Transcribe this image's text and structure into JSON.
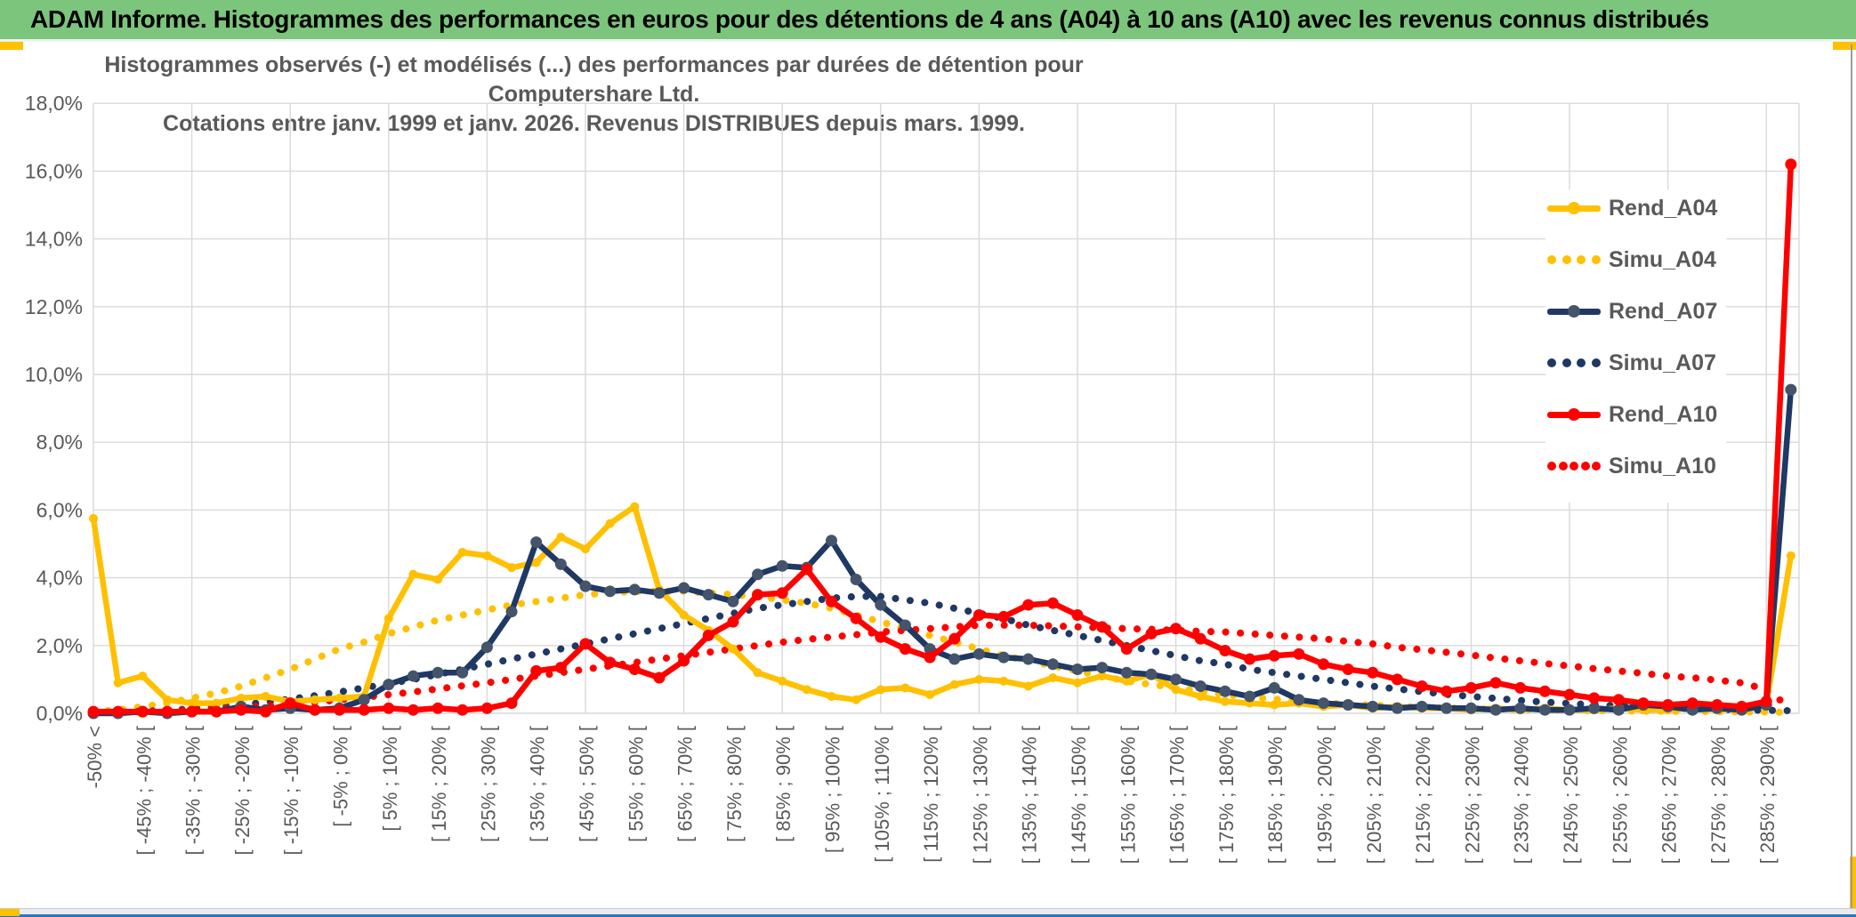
{
  "header": {
    "title": "ADAM Informe. Histogrammes des performances en euros pour des détentions de 4 ans (A04) à 10 ans (A10) avec les revenus connus distribués"
  },
  "chart": {
    "title_line1": "Histogrammes observés (-) et modélisés (...) des performances par durées de détention pour Computershare Ltd.",
    "title_line2": "Cotations entre janv. 1999 et janv. 2026. Revenus DISTRIBUES depuis mars. 1999."
  },
  "legend": {
    "items": [
      {
        "label": "Rend_A04",
        "color": "#FFC000",
        "marker_color": "#FFC000",
        "style": "solid",
        "sample_dots": 0
      },
      {
        "label": "Simu_A04",
        "color": "#FFC000",
        "marker_color": "#FFC000",
        "style": "dotted",
        "sample_dots": 4
      },
      {
        "label": "Rend_A07",
        "color": "#1F3864",
        "marker_color": "#44546A",
        "style": "solid",
        "sample_dots": 0
      },
      {
        "label": "Simu_A07",
        "color": "#1F3864",
        "marker_color": "#1F3864",
        "style": "dotted",
        "sample_dots": 4
      },
      {
        "label": "Rend_A10",
        "color": "#FF0000",
        "marker_color": "#FF0000",
        "style": "solid",
        "sample_dots": 0
      },
      {
        "label": "Simu_A10",
        "color": "#FF0000",
        "marker_color": "#FF0000",
        "style": "dotted",
        "sample_dots": 5
      }
    ]
  },
  "colors": {
    "header_green": "#7cc57c",
    "gold": "#FFC000",
    "navy": "#1F3864",
    "navy_marker": "#44546A",
    "red": "#FF0000",
    "axis_text": "#595959",
    "gridline": "#D9D9D9",
    "bottom_blue": "#2e75b6"
  },
  "chart_data": {
    "type": "line",
    "title": "Histogrammes observés (-) et modélisés (...) des performances par durées de détention pour Computershare Ltd.",
    "subtitle": "Cotations entre janv. 1999 et janv. 2026. Revenus DISTRIBUES depuis mars. 1999.",
    "grid": true,
    "legend_position": "right-inside",
    "y_axis": {
      "min": 0,
      "max": 18,
      "step": 2,
      "unit": "%",
      "tick_labels": [
        "0,0%",
        "2,0%",
        "4,0%",
        "6,0%",
        "8,0%",
        "10,0%",
        "12,0%",
        "14,0%",
        "16,0%",
        "18,0%"
      ]
    },
    "x_axis": {
      "n_points": 70,
      "bucket_width_pct": 5,
      "label_every_points": 2,
      "first_label_point_index": 0,
      "overflow_bucket_at_end": true,
      "labels": [
        "-50% <",
        "[ -45% ; -40% [",
        "[ -35% ; -30% [",
        "[ -25% ; -20% [",
        "[ -15% ; -10% [",
        "[ -5% ; 0% [",
        "[ 5% ; 10% [",
        "[ 15% ; 20% [",
        "[ 25% ; 30% [",
        "[ 35% ; 40% [",
        "[ 45% ; 50% [",
        "[ 55% ; 60% [",
        "[ 65% ; 70% [",
        "[ 75% ; 80% [",
        "[ 85% ; 90% [",
        "[ 95% ; 100% [",
        "[ 105% ; 110% [",
        "[ 115% ; 120% [",
        "[ 125% ; 130% [",
        "[ 135% ; 140% [",
        "[ 145% ; 150% [",
        "[ 155% ; 160% [",
        "[ 165% ; 170% [",
        "[ 175% ; 180% [",
        "[ 185% ; 190% [",
        "[ 195% ; 200% [",
        "[ 205% ; 210% [",
        "[ 215% ; 220% [",
        "[ 225% ; 230% [",
        "[ 235% ; 240% [",
        "[ 245% ; 250% [",
        "[ 255% ; 260% [",
        "[ 265% ; 270% [",
        "[ 275% ; 280% [",
        "[ 285% ; 290% ["
      ]
    },
    "series": [
      {
        "name": "Rend_A04",
        "style": "solid",
        "color": "#FFC000",
        "marker_color": "#FFC000",
        "marker_r": 5,
        "values": [
          5.75,
          0.9,
          1.1,
          0.4,
          0.3,
          0.3,
          0.45,
          0.5,
          0.35,
          0.4,
          0.45,
          0.5,
          2.8,
          4.1,
          3.95,
          4.75,
          4.65,
          4.3,
          4.45,
          5.2,
          4.85,
          5.6,
          6.1,
          3.65,
          2.9,
          2.45,
          1.9,
          1.2,
          0.95,
          0.7,
          0.5,
          0.4,
          0.7,
          0.75,
          0.55,
          0.85,
          1.0,
          0.95,
          0.8,
          1.05,
          0.9,
          1.1,
          0.95,
          1.15,
          0.7,
          0.5,
          0.35,
          0.3,
          0.25,
          0.3,
          0.2,
          0.25,
          0.15,
          0.2,
          0.15,
          0.15,
          0.1,
          0.15,
          0.1,
          0.15,
          0.1,
          0.1,
          0.15,
          0.1,
          0.1,
          0.15,
          0.1,
          0.15,
          0.25,
          4.65
        ]
      },
      {
        "name": "Simu_A04",
        "style": "dotted",
        "color": "#FFC000",
        "marker_color": "#FFC000",
        "marker_r": 0,
        "values": [
          0.05,
          0.1,
          0.2,
          0.3,
          0.45,
          0.6,
          0.8,
          1.05,
          1.3,
          1.6,
          1.9,
          2.1,
          2.35,
          2.55,
          2.75,
          2.9,
          3.05,
          3.2,
          3.3,
          3.4,
          3.5,
          3.55,
          3.6,
          3.6,
          3.6,
          3.55,
          3.5,
          3.45,
          3.35,
          3.25,
          3.1,
          2.9,
          2.7,
          2.5,
          2.3,
          2.1,
          1.9,
          1.7,
          1.55,
          1.4,
          1.25,
          1.1,
          0.95,
          0.85,
          0.75,
          0.65,
          0.55,
          0.48,
          0.42,
          0.36,
          0.3,
          0.27,
          0.24,
          0.21,
          0.18,
          0.16,
          0.14,
          0.12,
          0.11,
          0.1,
          0.09,
          0.08,
          0.07,
          0.06,
          0.06,
          0.05,
          0.05,
          0.04,
          0.04,
          0.03
        ]
      },
      {
        "name": "Rend_A07",
        "style": "solid",
        "color": "#1F3864",
        "marker_color": "#44546A",
        "marker_r": 6.5,
        "values": [
          0.0,
          0.0,
          0.05,
          0.0,
          0.05,
          0.05,
          0.2,
          0.1,
          0.15,
          0.1,
          0.15,
          0.4,
          0.85,
          1.1,
          1.2,
          1.2,
          1.95,
          3.0,
          5.05,
          4.4,
          3.75,
          3.6,
          3.65,
          3.55,
          3.7,
          3.5,
          3.3,
          4.1,
          4.35,
          4.3,
          5.1,
          3.95,
          3.2,
          2.6,
          1.9,
          1.6,
          1.75,
          1.65,
          1.6,
          1.45,
          1.3,
          1.35,
          1.2,
          1.15,
          1.0,
          0.8,
          0.65,
          0.5,
          0.75,
          0.4,
          0.3,
          0.25,
          0.2,
          0.15,
          0.2,
          0.15,
          0.15,
          0.1,
          0.15,
          0.1,
          0.1,
          0.15,
          0.1,
          0.25,
          0.2,
          0.1,
          0.15,
          0.1,
          0.25,
          9.55
        ]
      },
      {
        "name": "Simu_A07",
        "style": "dotted",
        "color": "#1F3864",
        "marker_color": "#1F3864",
        "marker_r": 0,
        "values": [
          0.02,
          0.04,
          0.06,
          0.09,
          0.13,
          0.18,
          0.25,
          0.33,
          0.42,
          0.52,
          0.63,
          0.75,
          0.88,
          1.0,
          1.15,
          1.3,
          1.45,
          1.6,
          1.75,
          1.9,
          2.05,
          2.2,
          2.35,
          2.5,
          2.65,
          2.8,
          2.95,
          3.1,
          3.2,
          3.3,
          3.4,
          3.45,
          3.45,
          3.35,
          3.25,
          3.1,
          2.95,
          2.8,
          2.6,
          2.45,
          2.3,
          2.15,
          2.0,
          1.85,
          1.7,
          1.55,
          1.45,
          1.3,
          1.2,
          1.1,
          1.0,
          0.9,
          0.8,
          0.72,
          0.64,
          0.56,
          0.5,
          0.44,
          0.38,
          0.33,
          0.29,
          0.25,
          0.22,
          0.19,
          0.16,
          0.14,
          0.12,
          0.1,
          0.09,
          0.08
        ]
      },
      {
        "name": "Rend_A10",
        "style": "solid",
        "color": "#FF0000",
        "marker_color": "#FF0000",
        "marker_r": 6.5,
        "values": [
          0.05,
          0.05,
          0.05,
          0.05,
          0.05,
          0.05,
          0.1,
          0.05,
          0.3,
          0.1,
          0.1,
          0.1,
          0.15,
          0.1,
          0.15,
          0.1,
          0.15,
          0.3,
          1.25,
          1.35,
          2.05,
          1.5,
          1.3,
          1.05,
          1.55,
          2.3,
          2.7,
          3.5,
          3.55,
          4.25,
          3.3,
          2.8,
          2.25,
          1.9,
          1.65,
          2.2,
          2.9,
          2.85,
          3.2,
          3.25,
          2.9,
          2.55,
          1.9,
          2.35,
          2.5,
          2.2,
          1.85,
          1.6,
          1.7,
          1.75,
          1.45,
          1.3,
          1.2,
          1.0,
          0.8,
          0.65,
          0.75,
          0.9,
          0.75,
          0.65,
          0.55,
          0.45,
          0.4,
          0.3,
          0.25,
          0.3,
          0.25,
          0.2,
          0.35,
          16.2
        ]
      },
      {
        "name": "Simu_A10",
        "style": "dotted",
        "color": "#FF0000",
        "marker_color": "#FF0000",
        "marker_r": 0,
        "values": [
          0.02,
          0.03,
          0.05,
          0.07,
          0.1,
          0.13,
          0.17,
          0.22,
          0.27,
          0.33,
          0.4,
          0.47,
          0.55,
          0.63,
          0.72,
          0.81,
          0.9,
          1.0,
          1.1,
          1.2,
          1.3,
          1.4,
          1.5,
          1.6,
          1.7,
          1.8,
          1.9,
          2.0,
          2.1,
          2.18,
          2.25,
          2.32,
          2.4,
          2.45,
          2.5,
          2.55,
          2.6,
          2.6,
          2.6,
          2.58,
          2.55,
          2.52,
          2.5,
          2.48,
          2.45,
          2.42,
          2.4,
          2.35,
          2.3,
          2.25,
          2.2,
          2.12,
          2.05,
          1.95,
          1.88,
          1.8,
          1.72,
          1.63,
          1.55,
          1.47,
          1.4,
          1.32,
          1.25,
          1.18,
          1.1,
          1.05,
          0.98,
          0.9,
          0.7,
          0.15
        ]
      }
    ]
  }
}
